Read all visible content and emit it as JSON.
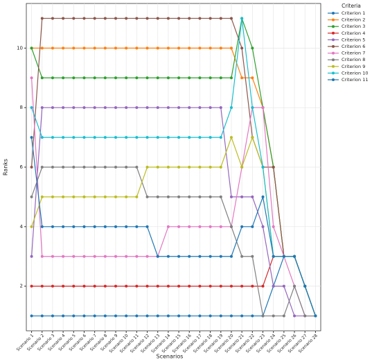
{
  "chart_data": {
    "type": "line",
    "x_label": "Scenarios",
    "y_label": "Ranks",
    "legend_title": "Criteria",
    "legend": "upper right",
    "grid": true,
    "categories": [
      "Scenario 1",
      "Scenario 2",
      "Scenario 3",
      "Scenario 4",
      "Scenario 5",
      "Scenario 6",
      "Scenario 7",
      "Scenario 8",
      "Scenario 9",
      "Scenario 10",
      "Scenario 11",
      "Scenario 12",
      "Scenario 13",
      "Scenario 14",
      "Scenario 15",
      "Scenario 16",
      "Scenario 17",
      "Scenario 18",
      "Scenario 19",
      "Scenario 20",
      "Scenario 21",
      "Scenario 22",
      "Scenario 23",
      "Scenario 24",
      "Scenario 25",
      "Scenario 26",
      "Scenario 27",
      "Scenario 28"
    ],
    "ylim": [
      0.5,
      11.5
    ],
    "yticks": [
      2,
      4,
      6,
      8,
      10
    ],
    "series": [
      {
        "name": "Criterion 1",
        "color": "#1f77b4",
        "values": [
          1,
          1,
          1,
          1,
          1,
          1,
          1,
          1,
          1,
          1,
          1,
          1,
          1,
          1,
          1,
          1,
          1,
          1,
          1,
          1,
          1,
          1,
          1,
          2,
          3,
          3,
          2,
          1
        ]
      },
      {
        "name": "Criterion 2",
        "color": "#ff7f0e",
        "values": [
          10,
          10,
          10,
          10,
          10,
          10,
          10,
          10,
          10,
          10,
          10,
          10,
          10,
          10,
          10,
          10,
          10,
          10,
          10,
          10,
          9,
          9,
          8,
          6,
          3,
          3,
          2,
          1
        ]
      },
      {
        "name": "Criterion 3",
        "color": "#2ca02c",
        "values": [
          10,
          9,
          9,
          9,
          9,
          9,
          9,
          9,
          9,
          9,
          9,
          9,
          9,
          9,
          9,
          9,
          9,
          9,
          9,
          9,
          11,
          10,
          8,
          6,
          3,
          3,
          2,
          1
        ]
      },
      {
        "name": "Criterion 4",
        "color": "#d62728",
        "values": [
          2,
          2,
          2,
          2,
          2,
          2,
          2,
          2,
          2,
          2,
          2,
          2,
          2,
          2,
          2,
          2,
          2,
          2,
          2,
          2,
          2,
          2,
          2,
          3,
          3,
          3,
          2,
          1
        ]
      },
      {
        "name": "Criterion 5",
        "color": "#9467bd",
        "values": [
          3,
          8,
          8,
          8,
          8,
          8,
          8,
          8,
          8,
          8,
          8,
          8,
          8,
          8,
          8,
          8,
          8,
          8,
          8,
          5,
          5,
          5,
          4,
          2,
          2,
          1,
          1,
          1
        ]
      },
      {
        "name": "Criterion 6",
        "color": "#8c564b",
        "values": [
          6,
          11,
          11,
          11,
          11,
          11,
          11,
          11,
          11,
          11,
          11,
          11,
          11,
          11,
          11,
          11,
          11,
          11,
          11,
          11,
          10,
          7,
          6,
          6,
          3,
          3,
          2,
          1
        ]
      },
      {
        "name": "Criterion 7",
        "color": "#e377c2",
        "values": [
          9,
          3,
          3,
          3,
          3,
          3,
          3,
          3,
          3,
          3,
          3,
          3,
          3,
          4,
          4,
          4,
          4,
          4,
          4,
          4,
          6,
          8,
          8,
          4,
          3,
          2,
          1,
          1
        ]
      },
      {
        "name": "Criterion 8",
        "color": "#7f7f7f",
        "values": [
          5,
          6,
          6,
          6,
          6,
          6,
          6,
          6,
          6,
          6,
          6,
          5,
          5,
          5,
          5,
          5,
          5,
          5,
          5,
          4,
          3,
          3,
          1,
          1,
          1,
          2,
          1,
          1
        ]
      },
      {
        "name": "Criterion 9",
        "color": "#bcbd22",
        "values": [
          4,
          5,
          5,
          5,
          5,
          5,
          5,
          5,
          5,
          5,
          5,
          6,
          6,
          6,
          6,
          6,
          6,
          6,
          6,
          7,
          6,
          7,
          6,
          3,
          3,
          3,
          2,
          1
        ]
      },
      {
        "name": "Criterion 10",
        "color": "#17becf",
        "values": [
          8,
          7,
          7,
          7,
          7,
          7,
          7,
          7,
          7,
          7,
          7,
          7,
          7,
          7,
          7,
          7,
          7,
          7,
          7,
          8,
          11,
          8,
          6,
          3,
          3,
          3,
          2,
          1
        ]
      },
      {
        "name": "Criterion 11",
        "color": "#1f77b4",
        "values": [
          7,
          4,
          4,
          4,
          4,
          4,
          4,
          4,
          4,
          4,
          4,
          4,
          3,
          3,
          3,
          3,
          3,
          3,
          3,
          3,
          4,
          4,
          5,
          3,
          3,
          3,
          2,
          1
        ]
      }
    ]
  }
}
